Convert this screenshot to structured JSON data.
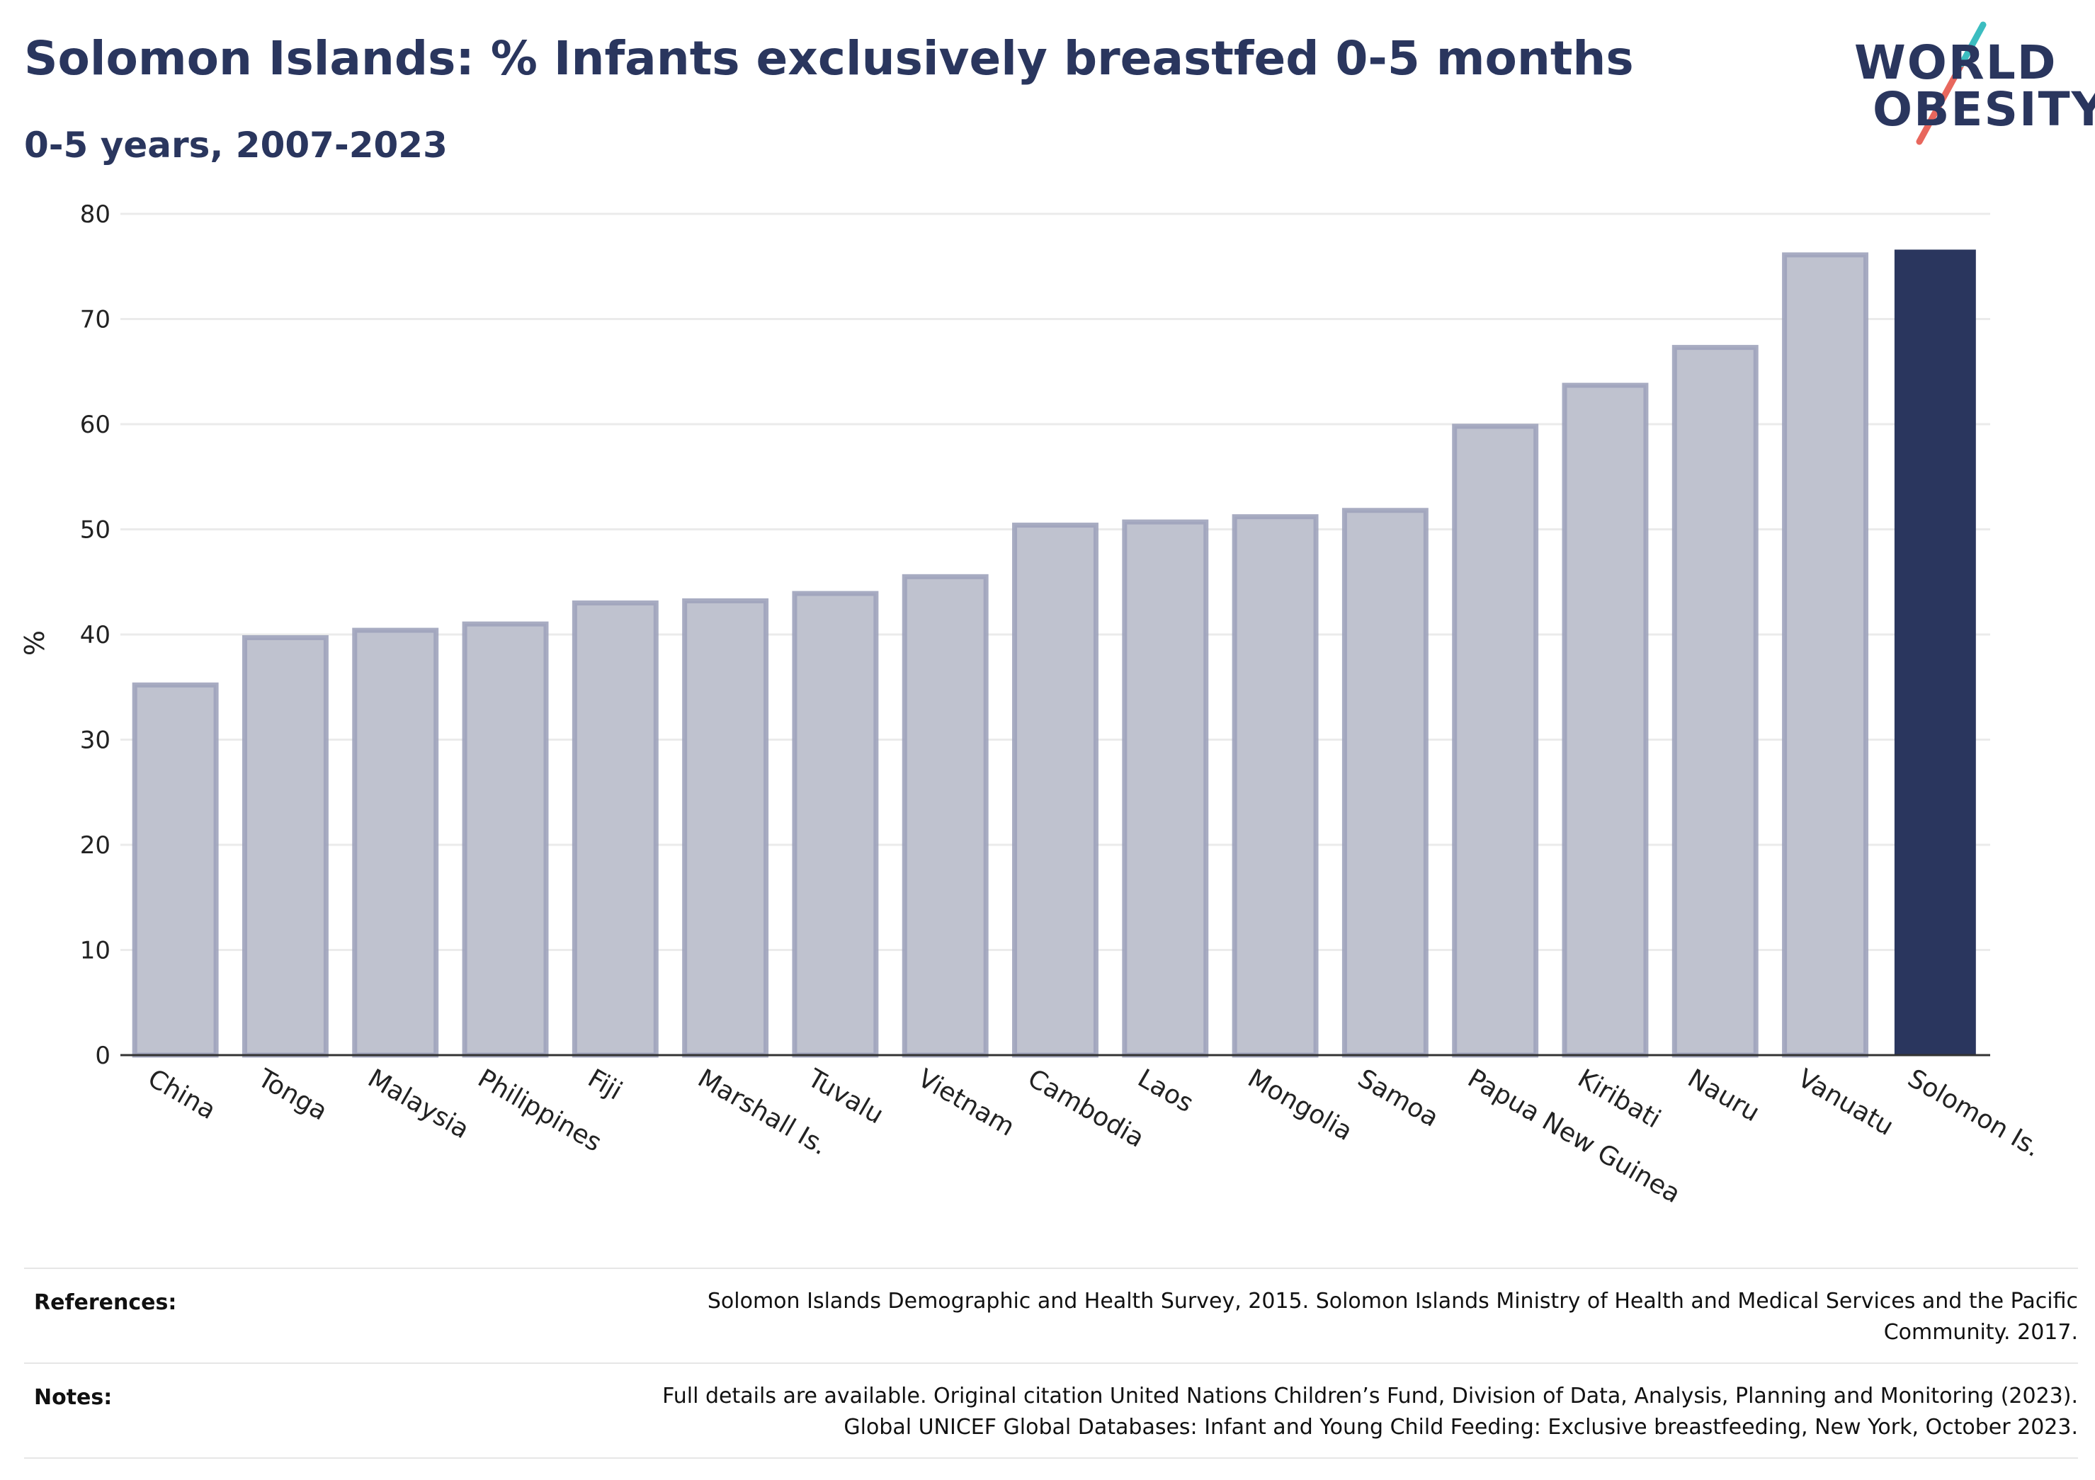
{
  "header": {
    "title": "Solomon Islands: % Infants exclusively breastfed 0-5 months",
    "subtitle": "0-5 years, 2007-2023"
  },
  "logo": {
    "line1": "WORLD",
    "line2": "OBESITY",
    "accent_colors": [
      "#3bbdc0",
      "#e8675d"
    ]
  },
  "colors": {
    "bar": "#bfc2cf",
    "bar_edge": "#9ea3bb",
    "highlight": "#2a365e",
    "grid": "#ebebeb",
    "axis": "#333333"
  },
  "chart_data": {
    "type": "bar",
    "title": "Solomon Islands: % Infants exclusively breastfed 0-5 months",
    "subtitle": "0-5 years, 2007-2023",
    "xlabel": "",
    "ylabel": "%",
    "ylim": [
      0,
      80
    ],
    "yticks": [
      "0",
      "10",
      "20",
      "30",
      "40",
      "50",
      "60",
      "70",
      "80"
    ],
    "grid": true,
    "categories": [
      "China",
      "Tonga",
      "Malaysia",
      "Philippines",
      "Fiji",
      "Marshall Is.",
      "Tuvalu",
      "Vietnam",
      "Cambodia",
      "Laos",
      "Mongolia",
      "Samoa",
      "Papua New Guinea",
      "Kiribati",
      "Nauru",
      "Vanuatu",
      "Solomon Is."
    ],
    "values": [
      35.2,
      39.7,
      40.4,
      41.0,
      43.0,
      43.2,
      43.9,
      45.5,
      50.4,
      50.7,
      51.2,
      51.8,
      59.8,
      63.7,
      67.3,
      76.1,
      76.6
    ],
    "highlight": "Solomon Is."
  },
  "footer": {
    "references_label": "References:",
    "references_lines": [
      "Solomon Islands Demographic and Health Survey, 2015. Solomon Islands Ministry of Health and Medical Services and the Pacific",
      "Community. 2017."
    ],
    "notes_label": "Notes:",
    "notes_lines": [
      "Full details are available. Original citation United Nations Children’s Fund, Division of Data, Analysis, Planning and Monitoring (2023).",
      "Global UNICEF Global Databases: Infant and Young Child Feeding: Exclusive breastfeeding, New York, October 2023."
    ]
  }
}
